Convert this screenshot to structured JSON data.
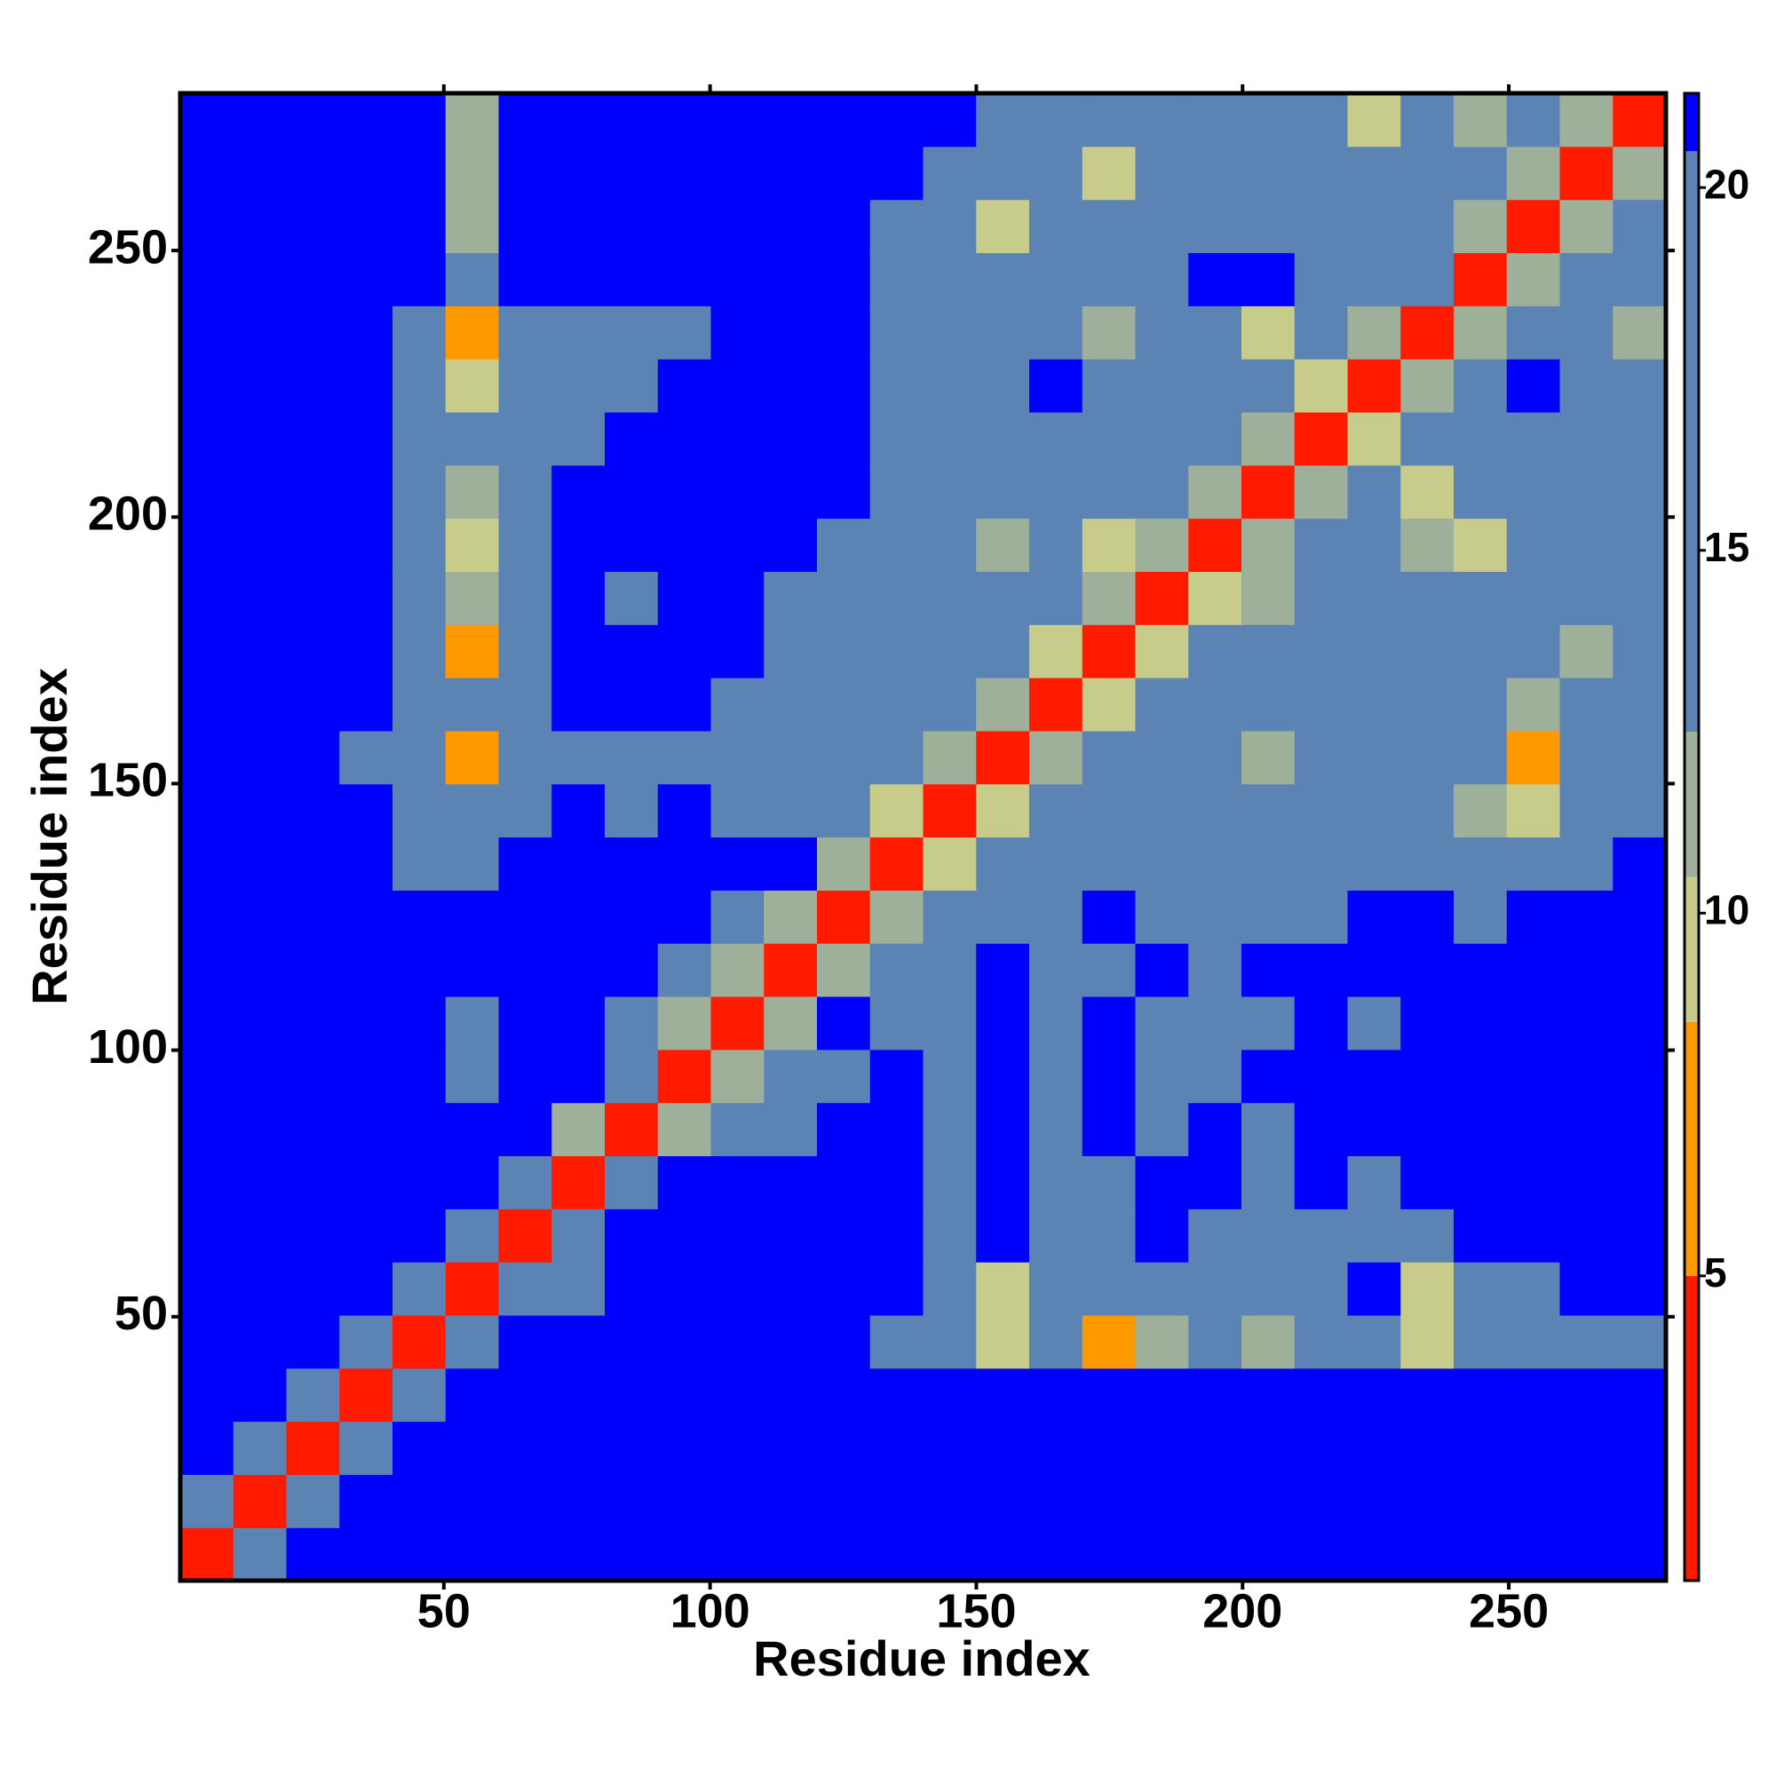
{
  "chart_data": {
    "type": "heatmap",
    "xlabel": "Residue index",
    "ylabel": "Residue index",
    "xlim": [
      0.5,
      279.5
    ],
    "ylim": [
      0.5,
      279.5
    ],
    "xticks": [
      50,
      100,
      150,
      200,
      250
    ],
    "yticks": [
      50,
      100,
      150,
      200,
      250
    ],
    "zlim": [
      0.8,
      21.3
    ],
    "zticks": [
      5,
      10,
      15,
      20
    ],
    "colorscale": [
      {
        "max": 5,
        "color": "#ff1a00"
      },
      {
        "max": 8.5,
        "color": "#ff9900"
      },
      {
        "max": 10.5,
        "color": "#c8cc8a"
      },
      {
        "max": 12.5,
        "color": "#9fb09a"
      },
      {
        "max": 20.5,
        "color": "#5b84b5"
      },
      {
        "max": 21.3,
        "color": "#0000ff"
      }
    ],
    "z": [
      [
        3,
        13,
        22,
        22,
        22,
        22,
        22,
        22,
        22,
        22,
        22,
        22,
        22,
        22,
        22,
        22,
        22,
        22,
        22,
        22,
        22,
        22,
        22,
        22,
        22,
        22,
        22,
        22
      ],
      [
        13,
        3,
        13,
        22,
        22,
        22,
        22,
        22,
        22,
        22,
        22,
        22,
        22,
        22,
        22,
        22,
        22,
        22,
        22,
        22,
        22,
        22,
        22,
        22,
        22,
        22,
        22,
        22
      ],
      [
        22,
        13,
        3,
        13,
        22,
        22,
        22,
        22,
        22,
        22,
        22,
        22,
        22,
        22,
        22,
        22,
        22,
        22,
        22,
        22,
        22,
        22,
        22,
        22,
        22,
        22,
        22,
        22
      ],
      [
        22,
        22,
        13,
        3,
        13,
        22,
        22,
        22,
        22,
        22,
        22,
        22,
        22,
        22,
        22,
        22,
        22,
        22,
        22,
        22,
        22,
        22,
        22,
        22,
        22,
        22,
        22,
        22
      ],
      [
        22,
        22,
        22,
        13,
        3,
        13,
        22,
        22,
        22,
        22,
        22,
        22,
        22,
        16,
        16,
        9,
        16,
        8,
        12,
        16,
        12,
        16,
        16,
        9,
        16,
        16,
        16,
        16
      ],
      [
        22,
        22,
        22,
        22,
        13,
        3,
        13,
        16,
        22,
        22,
        22,
        22,
        22,
        22,
        16,
        9,
        16,
        16,
        16,
        16,
        16,
        16,
        22,
        9,
        16,
        16,
        22,
        22
      ],
      [
        22,
        22,
        22,
        22,
        22,
        14,
        3,
        13,
        22,
        22,
        22,
        22,
        22,
        22,
        16,
        22,
        16,
        16,
        22,
        16,
        16,
        16,
        16,
        16,
        22,
        22,
        22,
        22
      ],
      [
        22,
        22,
        22,
        22,
        22,
        22,
        14,
        3,
        13,
        22,
        22,
        22,
        22,
        22,
        16,
        22,
        16,
        16,
        22,
        22,
        16,
        22,
        16,
        22,
        22,
        22,
        22,
        22
      ],
      [
        22,
        22,
        22,
        22,
        22,
        22,
        22,
        12,
        3,
        12,
        16,
        16,
        22,
        22,
        16,
        22,
        16,
        22,
        16,
        22,
        16,
        22,
        22,
        22,
        22,
        22,
        22,
        22
      ],
      [
        22,
        22,
        22,
        22,
        22,
        16,
        22,
        22,
        13,
        3,
        12,
        16,
        16,
        22,
        16,
        22,
        16,
        22,
        16,
        16,
        22,
        22,
        22,
        22,
        22,
        22,
        22,
        22
      ],
      [
        22,
        22,
        22,
        22,
        22,
        16,
        22,
        22,
        16,
        12,
        3,
        12,
        22,
        16,
        16,
        22,
        16,
        22,
        16,
        16,
        16,
        22,
        16,
        22,
        22,
        22,
        22,
        22
      ],
      [
        22,
        22,
        22,
        22,
        22,
        22,
        22,
        22,
        22,
        16,
        12,
        3,
        12,
        16,
        16,
        22,
        16,
        16,
        22,
        16,
        22,
        22,
        22,
        22,
        22,
        22,
        22,
        22
      ],
      [
        22,
        22,
        22,
        22,
        22,
        22,
        22,
        22,
        22,
        22,
        16,
        12,
        3,
        12,
        16,
        16,
        16,
        22,
        16,
        16,
        16,
        16,
        22,
        22,
        16,
        22,
        22,
        22
      ],
      [
        22,
        22,
        22,
        22,
        16,
        16,
        22,
        22,
        22,
        22,
        22,
        22,
        12,
        3,
        9,
        16,
        16,
        16,
        16,
        16,
        16,
        16,
        16,
        16,
        16,
        16,
        16,
        22
      ],
      [
        22,
        22,
        22,
        22,
        16,
        16,
        16,
        22,
        16,
        22,
        16,
        16,
        16,
        9,
        3,
        9,
        16,
        16,
        16,
        16,
        16,
        16,
        16,
        16,
        12,
        9,
        16,
        16
      ],
      [
        22,
        22,
        22,
        16,
        16,
        8,
        16,
        16,
        16,
        16,
        16,
        16,
        16,
        16,
        12,
        3,
        12,
        16,
        16,
        16,
        12,
        16,
        16,
        16,
        16,
        8,
        16,
        16
      ],
      [
        22,
        22,
        22,
        22,
        16,
        16,
        16,
        22,
        22,
        22,
        16,
        16,
        16,
        16,
        16,
        12,
        3,
        9,
        16,
        16,
        16,
        16,
        16,
        16,
        16,
        12,
        16,
        16
      ],
      [
        22,
        22,
        22,
        22,
        16,
        8,
        16,
        22,
        22,
        22,
        22,
        16,
        16,
        16,
        16,
        16,
        9,
        3,
        9,
        16,
        16,
        16,
        16,
        16,
        16,
        16,
        12,
        16
      ],
      [
        22,
        22,
        22,
        22,
        16,
        12,
        16,
        22,
        16,
        22,
        22,
        16,
        16,
        16,
        16,
        16,
        16,
        12,
        3,
        9,
        12,
        16,
        16,
        16,
        16,
        16,
        16,
        16
      ],
      [
        22,
        22,
        22,
        22,
        16,
        9,
        16,
        22,
        22,
        22,
        22,
        22,
        16,
        16,
        16,
        12,
        16,
        9,
        12,
        3,
        12,
        16,
        16,
        12,
        9,
        16,
        16,
        16
      ],
      [
        22,
        22,
        22,
        22,
        16,
        12,
        16,
        22,
        22,
        22,
        22,
        22,
        22,
        16,
        16,
        16,
        16,
        16,
        16,
        12,
        3,
        12,
        16,
        9,
        16,
        16,
        16,
        16
      ],
      [
        22,
        22,
        22,
        22,
        16,
        16,
        16,
        16,
        22,
        22,
        22,
        22,
        22,
        16,
        16,
        16,
        16,
        16,
        16,
        16,
        12,
        3,
        9,
        16,
        16,
        16,
        16,
        16
      ],
      [
        22,
        22,
        22,
        22,
        16,
        9,
        16,
        16,
        16,
        22,
        22,
        22,
        22,
        16,
        16,
        16,
        22,
        16,
        16,
        16,
        16,
        9,
        3,
        12,
        16,
        22,
        16,
        16
      ],
      [
        22,
        22,
        22,
        22,
        16,
        8,
        16,
        16,
        16,
        16,
        22,
        22,
        22,
        16,
        16,
        16,
        16,
        12,
        16,
        16,
        9,
        16,
        12,
        3,
        12,
        16,
        16,
        12
      ],
      [
        22,
        22,
        22,
        22,
        22,
        16,
        22,
        22,
        22,
        22,
        22,
        22,
        22,
        16,
        16,
        16,
        16,
        16,
        16,
        22,
        22,
        16,
        16,
        16,
        3,
        12,
        16,
        16
      ],
      [
        22,
        22,
        22,
        22,
        22,
        12,
        22,
        22,
        22,
        22,
        22,
        22,
        22,
        16,
        16,
        9,
        16,
        16,
        16,
        16,
        16,
        16,
        16,
        16,
        12,
        3,
        12,
        16
      ],
      [
        22,
        22,
        22,
        22,
        22,
        12,
        22,
        22,
        22,
        22,
        22,
        22,
        22,
        22,
        16,
        16,
        16,
        9,
        16,
        16,
        16,
        16,
        16,
        16,
        16,
        12,
        3,
        12
      ],
      [
        22,
        22,
        22,
        22,
        22,
        12,
        22,
        22,
        22,
        22,
        22,
        22,
        22,
        22,
        22,
        16,
        16,
        16,
        16,
        16,
        16,
        16,
        9,
        16,
        12,
        16,
        12,
        3
      ]
    ]
  }
}
